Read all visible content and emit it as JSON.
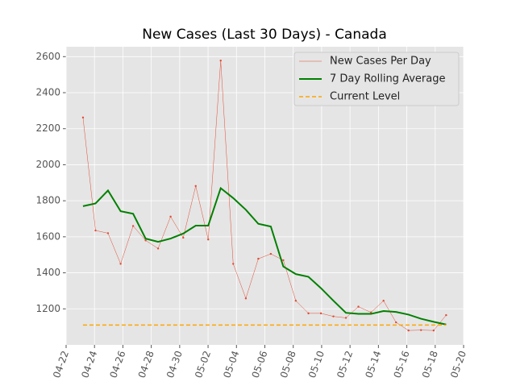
{
  "chart_data": {
    "type": "line",
    "title": "New Cases (Last 30 Days) - Canada",
    "x": [
      1.19,
      2.07,
      2.95,
      3.84,
      4.72,
      5.6,
      6.48,
      7.36,
      8.25,
      9.13,
      10.01,
      10.89,
      11.77,
      12.66,
      13.54,
      14.42,
      15.3,
      16.18,
      17.07,
      17.95,
      18.83,
      19.71,
      20.59,
      21.48,
      22.36,
      23.24,
      24.12,
      25.0,
      25.89,
      26.77
    ],
    "series": [
      {
        "name": "New Cases Per Day",
        "color": "#e24a33",
        "style": "thin-dots",
        "values": [
          2262,
          1635,
          1620,
          1450,
          1660,
          1580,
          1535,
          1712,
          1595,
          1882,
          1585,
          2578,
          1450,
          1258,
          1478,
          1505,
          1470,
          1245,
          1175,
          1175,
          1158,
          1150,
          1212,
          1180,
          1245,
          1125,
          1080,
          1082,
          1080,
          1165
        ]
      },
      {
        "name": "7 Day Rolling Average",
        "color": "#008000",
        "style": "thick",
        "values": [
          1770,
          1785,
          1857,
          1742,
          1728,
          1590,
          1572,
          1590,
          1618,
          1662,
          1662,
          1870,
          1815,
          1750,
          1672,
          1657,
          1435,
          1393,
          1378,
          1315,
          1245,
          1178,
          1172,
          1172,
          1188,
          1183,
          1168,
          1145,
          1128,
          1113
        ]
      },
      {
        "name": "Current Level",
        "color": "#ffa500",
        "style": "dashed",
        "x": [
          1.19,
          26.77
        ],
        "values": [
          1110,
          1110
        ]
      }
    ],
    "xlim": [
      0,
      28
    ],
    "xticks": [
      {
        "value": 0,
        "label": "04-22"
      },
      {
        "value": 2,
        "label": "04-24"
      },
      {
        "value": 4,
        "label": "04-26"
      },
      {
        "value": 6,
        "label": "04-28"
      },
      {
        "value": 8,
        "label": "04-30"
      },
      {
        "value": 10,
        "label": "05-02"
      },
      {
        "value": 12,
        "label": "05-04"
      },
      {
        "value": 14,
        "label": "05-06"
      },
      {
        "value": 16,
        "label": "05-08"
      },
      {
        "value": 18,
        "label": "05-10"
      },
      {
        "value": 20,
        "label": "05-12"
      },
      {
        "value": 22,
        "label": "05-14"
      },
      {
        "value": 24,
        "label": "05-16"
      },
      {
        "value": 26,
        "label": "05-18"
      },
      {
        "value": 28,
        "label": "05-20"
      }
    ],
    "ylim": [
      1000,
      2655
    ],
    "yticks": [
      1200,
      1400,
      1600,
      1800,
      2000,
      2200,
      2400,
      2600
    ],
    "grid": true,
    "legend": "upper right"
  }
}
